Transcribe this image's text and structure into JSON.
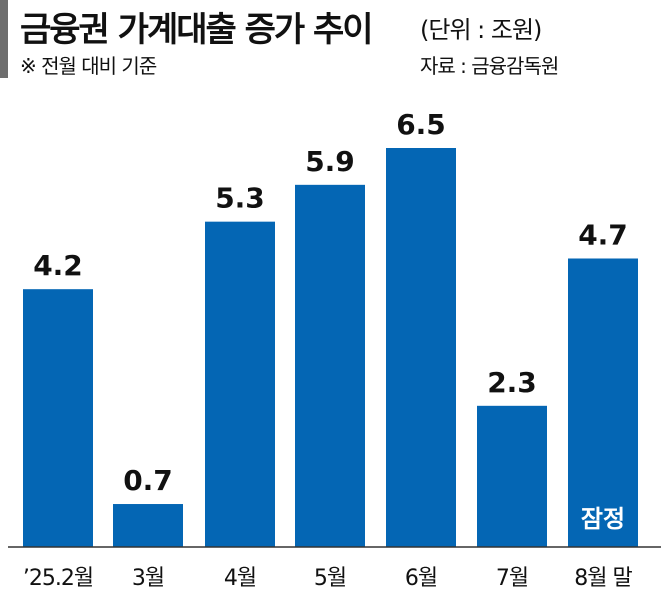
{
  "header": {
    "title": "금융권 가계대출 증가 추이",
    "unit": "(단위 : 조원)",
    "note": "※ 전월 대비 기준",
    "source": "자료 : 금융감독원"
  },
  "chart_data": {
    "type": "bar",
    "title": "금융권 가계대출 증가 추이",
    "unit": "(단위 : 조원)",
    "categories": [
      "’25.2월",
      "3월",
      "4월",
      "5월",
      "6월",
      "7월",
      "8월 말"
    ],
    "values": [
      4.2,
      0.7,
      5.3,
      5.9,
      6.5,
      2.3,
      4.7
    ],
    "annotations": [
      {
        "category": "8월 말",
        "text": "잠정"
      }
    ],
    "ylim": [
      0,
      6.5
    ],
    "grid": false,
    "bar_color": "#0466b4",
    "axis_color": "#333333"
  }
}
